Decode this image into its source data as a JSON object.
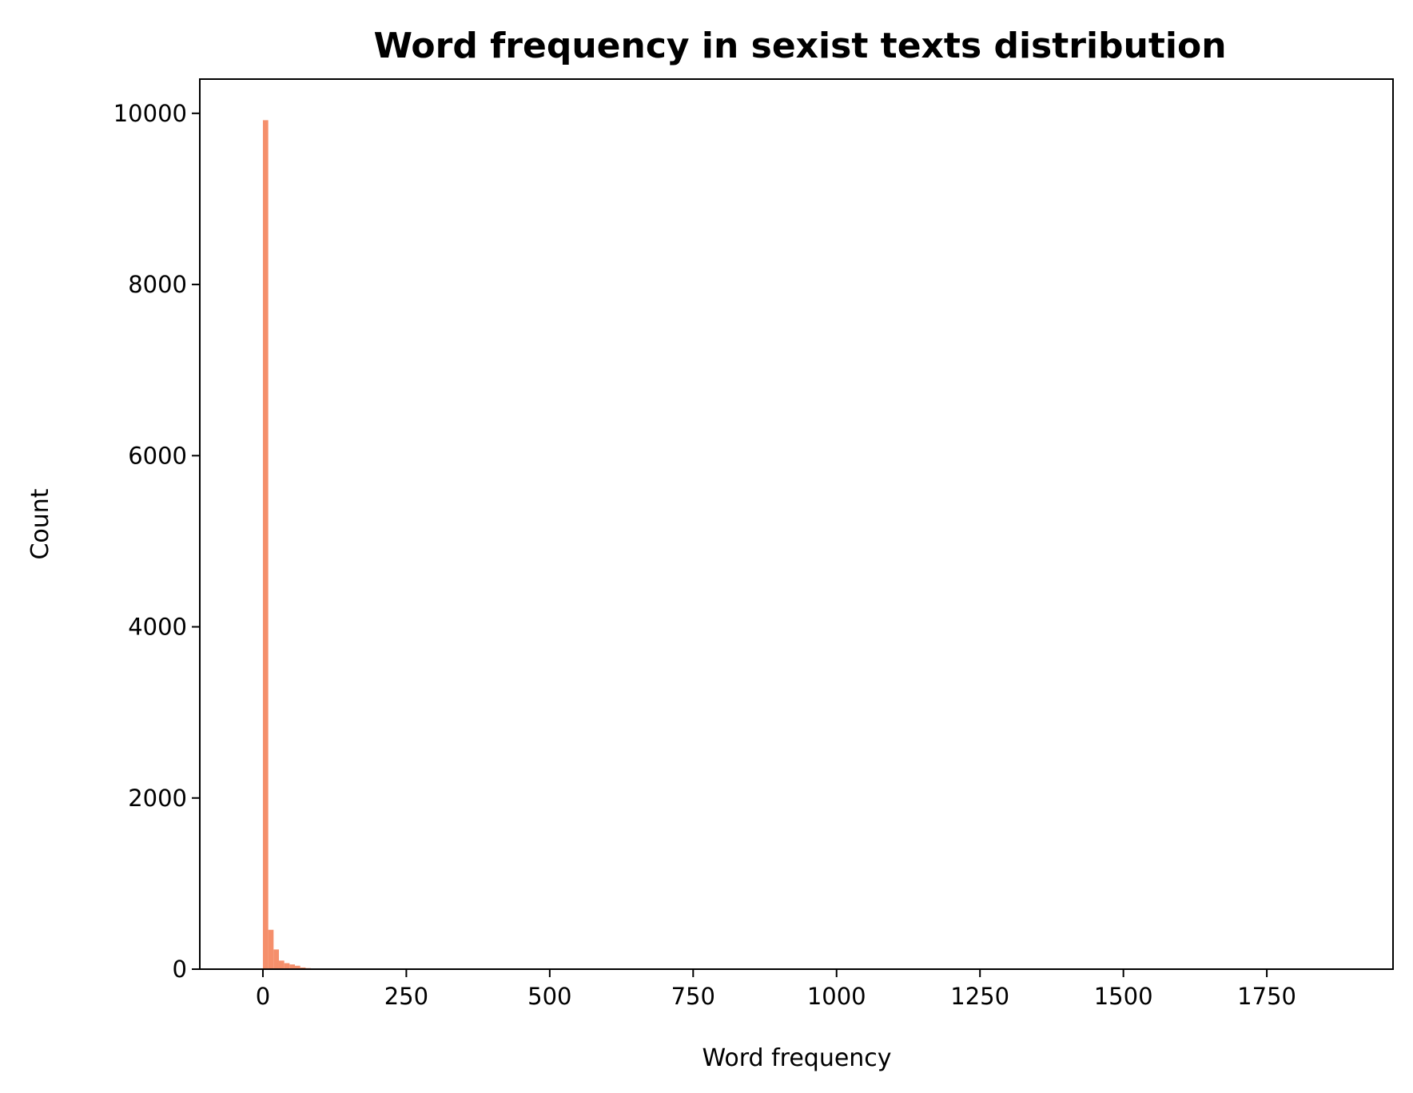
{
  "chart_data": {
    "type": "bar",
    "title": "Word frequency in sexist texts distribution",
    "xlabel": "Word frequency",
    "ylabel": "Count",
    "xlim": [
      -110,
      1970
    ],
    "ylim": [
      0,
      10400
    ],
    "xticks": [
      "0",
      "250",
      "500",
      "750",
      "1000",
      "1250",
      "1500",
      "1750"
    ],
    "yticks": [
      "0",
      "2000",
      "4000",
      "6000",
      "8000",
      "10000"
    ],
    "bar_color": "#f58f6b",
    "bin_width": 9.3,
    "series": [
      {
        "bin_starts": [
          0,
          9.3,
          18.6,
          27.9,
          37.2,
          46.5,
          55.8,
          65.1,
          74.4,
          83.7
        ],
        "values": [
          9920,
          460,
          230,
          100,
          70,
          55,
          40,
          20,
          12,
          8
        ]
      }
    ],
    "grid": false,
    "legend": false
  }
}
